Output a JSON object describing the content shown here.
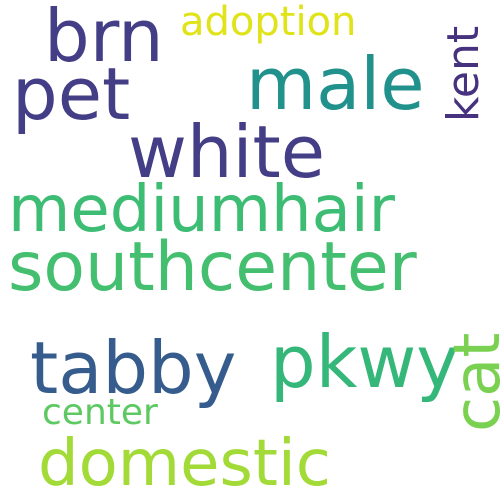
{
  "words": {
    "adoption": {
      "text": "adoption",
      "color": "#dfe318"
    },
    "brn": {
      "text": "brn",
      "color": "#433e85"
    },
    "pet": {
      "text": "pet",
      "color": "#433e85"
    },
    "male": {
      "text": "male",
      "color": "#21918c"
    },
    "kent": {
      "text": "kent",
      "color": "#46327e"
    },
    "white": {
      "text": "white",
      "color": "#433e85"
    },
    "mediumhair": {
      "text": "mediumhair",
      "color": "#3dbc74"
    },
    "southcenter": {
      "text": "southcenter",
      "color": "#44bf70"
    },
    "tabby": {
      "text": "tabby",
      "color": "#365c8d"
    },
    "pkwy": {
      "text": "pkwy",
      "color": "#35b779"
    },
    "cat": {
      "text": "cat",
      "color": "#7ad151"
    },
    "center": {
      "text": "center",
      "color": "#5ec962"
    },
    "domestic": {
      "text": "domestic",
      "color": "#a2da37"
    }
  }
}
